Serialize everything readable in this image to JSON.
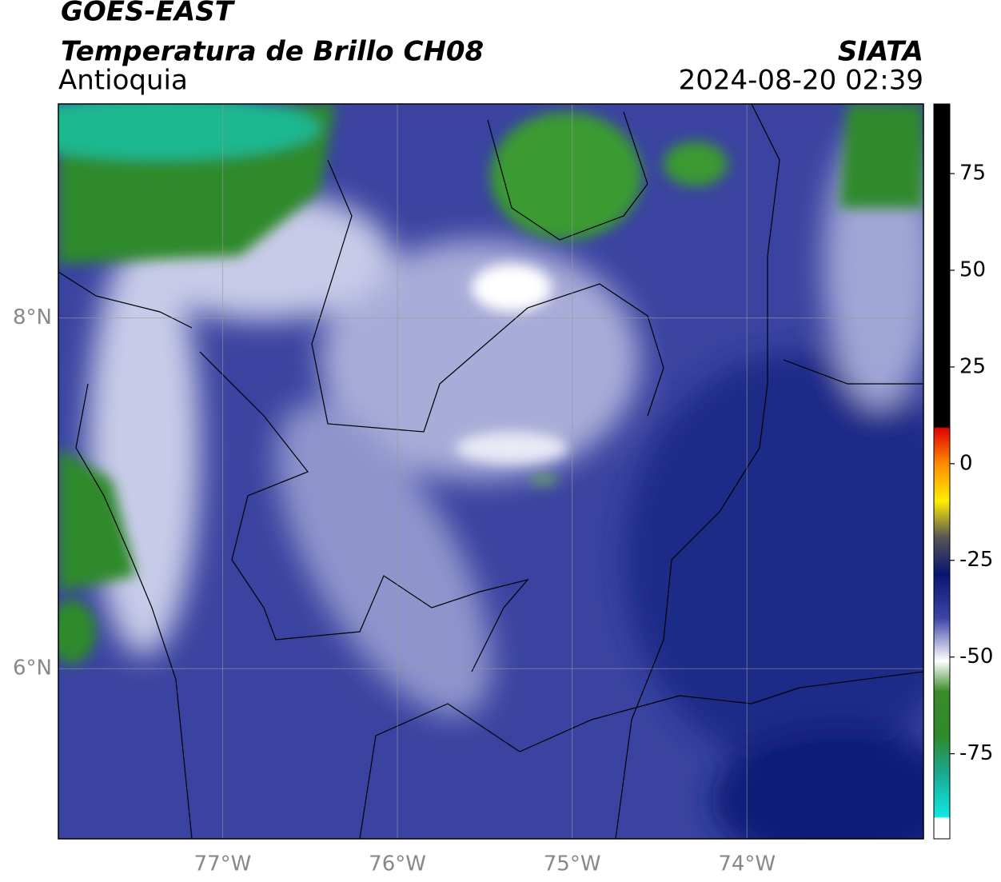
{
  "header": {
    "title": "GOES-EAST",
    "subtitle": "Temperatura de Brillo CH08",
    "region": "Antioquia",
    "source": "SIATA",
    "datetime": "2024-08-20 02:39"
  },
  "map": {
    "xlim": [
      -77.94,
      -72.99
    ],
    "ylim": [
      5.03,
      9.22
    ],
    "xticks": [
      {
        "value": -77,
        "label": "77°W"
      },
      {
        "value": -76,
        "label": "76°W"
      },
      {
        "value": -75,
        "label": "75°W"
      },
      {
        "value": -74,
        "label": "74°W"
      }
    ],
    "yticks": [
      {
        "value": 6,
        "label": "6°N"
      },
      {
        "value": 8,
        "label": "8°N"
      }
    ],
    "grid": true
  },
  "colorbar": {
    "lim": [
      -97,
      93
    ],
    "ticks": [
      -75,
      -50,
      -25,
      0,
      25,
      50,
      75
    ]
  }
}
